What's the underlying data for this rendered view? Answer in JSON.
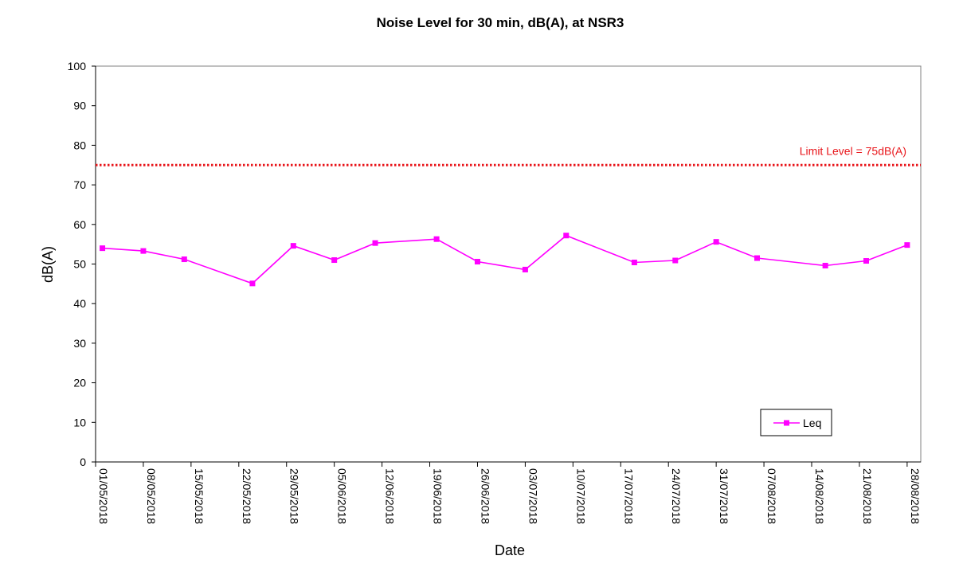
{
  "chart_data": {
    "type": "line",
    "title": "Noise Level for 30 min, dB(A), at NSR3",
    "xlabel": "Date",
    "ylabel": "dB(A)",
    "ylim": [
      0,
      100
    ],
    "yticks": [
      0,
      10,
      20,
      30,
      40,
      50,
      60,
      70,
      80,
      90,
      100
    ],
    "xlim": [
      "2018-05-01",
      "2018-08-30"
    ],
    "x_tick_labels": [
      "01/05/2018",
      "08/05/2018",
      "15/05/2018",
      "22/05/2018",
      "29/05/2018",
      "05/06/2018",
      "12/06/2018",
      "19/06/2018",
      "26/06/2018",
      "03/07/2018",
      "10/07/2018",
      "17/07/2018",
      "24/07/2018",
      "31/07/2018",
      "07/08/2018",
      "14/08/2018",
      "21/08/2018",
      "28/08/2018"
    ],
    "x_tick_dates": [
      "2018-05-01",
      "2018-05-08",
      "2018-05-15",
      "2018-05-22",
      "2018-05-29",
      "2018-06-05",
      "2018-06-12",
      "2018-06-19",
      "2018-06-26",
      "2018-07-03",
      "2018-07-10",
      "2018-07-17",
      "2018-07-24",
      "2018-07-31",
      "2018-08-07",
      "2018-08-14",
      "2018-08-21",
      "2018-08-28"
    ],
    "series": [
      {
        "name": "Leq",
        "color": "#ff00ff",
        "marker": "square",
        "x": [
          "2018-05-02",
          "2018-05-08",
          "2018-05-14",
          "2018-05-24",
          "2018-05-30",
          "2018-06-05",
          "2018-06-11",
          "2018-06-20",
          "2018-06-26",
          "2018-07-03",
          "2018-07-09",
          "2018-07-19",
          "2018-07-25",
          "2018-07-31",
          "2018-08-06",
          "2018-08-16",
          "2018-08-22",
          "2018-08-28"
        ],
        "values": [
          54.0,
          53.3,
          51.2,
          45.1,
          54.6,
          51.0,
          55.3,
          56.3,
          50.6,
          48.6,
          57.2,
          50.4,
          50.9,
          55.6,
          51.5,
          49.6,
          50.8,
          54.8
        ]
      }
    ],
    "reference_lines": [
      {
        "label": "Limit Level = 75dB(A)",
        "value": 75,
        "color": "#e8161b",
        "style": "dotted"
      }
    ],
    "legend": {
      "position": "bottom-right",
      "entries": [
        "Leq"
      ]
    },
    "grid": false
  }
}
